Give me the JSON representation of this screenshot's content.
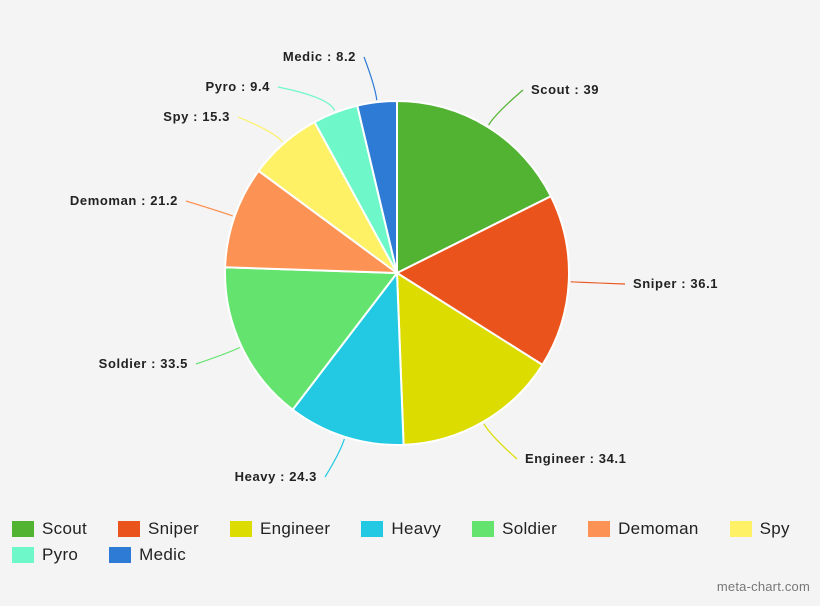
{
  "chart_data": {
    "type": "pie",
    "title": "",
    "slices": [
      {
        "label": "Scout",
        "value": 39,
        "color": "#52b232",
        "display": "Scout : 39"
      },
      {
        "label": "Sniper",
        "value": 36.1,
        "color": "#ea541c",
        "display": "Sniper : 36.1"
      },
      {
        "label": "Engineer",
        "value": 34.1,
        "color": "#dcdc00",
        "display": "Engineer : 34.1"
      },
      {
        "label": "Heavy",
        "value": 24.3,
        "color": "#23c9e3",
        "display": "Heavy : 24.3"
      },
      {
        "label": "Soldier",
        "value": 33.5,
        "color": "#64e36e",
        "display": "Soldier : 33.5"
      },
      {
        "label": "Demoman",
        "value": 21.2,
        "color": "#fc9354",
        "display": "Demoman : 21.2"
      },
      {
        "label": "Spy",
        "value": 15.3,
        "color": "#fef166",
        "display": "Spy : 15.3"
      },
      {
        "label": "Pyro",
        "value": 9.4,
        "color": "#6ef7c8",
        "display": "Pyro : 9.4"
      },
      {
        "label": "Medic",
        "value": 8.2,
        "color": "#2e7bd6",
        "display": "Medic : 8.2"
      }
    ],
    "legend_position": "bottom"
  },
  "legend": {
    "items": [
      "Scout",
      "Sniper",
      "Engineer",
      "Heavy",
      "Soldier",
      "Demoman",
      "Spy",
      "Pyro",
      "Medic"
    ]
  },
  "credit": "meta-chart.com"
}
